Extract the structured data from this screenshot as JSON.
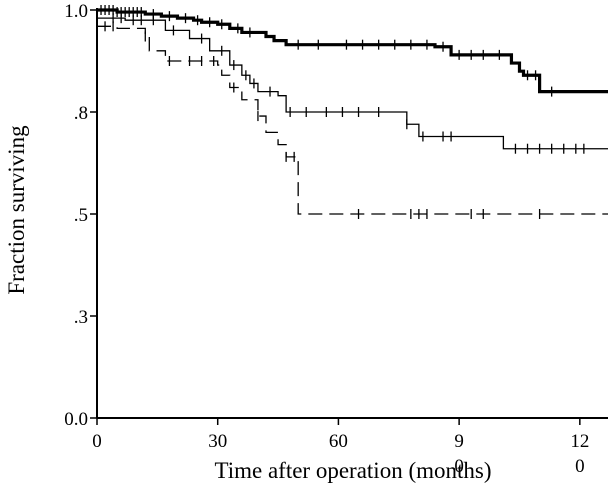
{
  "chart_data": {
    "type": "line",
    "step": true,
    "title": "",
    "xlabel": "Time after operation (months)",
    "ylabel": "Fraction surviving",
    "xlim": [
      0,
      127
    ],
    "ylim": [
      0.0,
      1.0
    ],
    "grid": false,
    "x_ticks": [
      0,
      30,
      60,
      90,
      120
    ],
    "x_tick_labels": [
      "0",
      "30",
      "60",
      "9\n0",
      "12\n0"
    ],
    "y_ticks": [
      0.0,
      0.25,
      0.5,
      0.75,
      1.0
    ],
    "y_tick_labels": [
      "0.0",
      ".3",
      ".5",
      ".8",
      "1.0"
    ],
    "series": [
      {
        "style": "thick-solid",
        "x": [
          0,
          5,
          12,
          16,
          20,
          24,
          26,
          30,
          33,
          36,
          42,
          44,
          47,
          60,
          80,
          84,
          88,
          90,
          103,
          105,
          106,
          110,
          127
        ],
        "y": [
          1.0,
          0.995,
          0.99,
          0.985,
          0.98,
          0.975,
          0.97,
          0.965,
          0.955,
          0.945,
          0.935,
          0.925,
          0.915,
          0.915,
          0.915,
          0.91,
          0.89,
          0.89,
          0.87,
          0.85,
          0.84,
          0.8,
          0.8
        ],
        "censored_x": [
          1,
          2,
          3,
          4,
          5,
          6,
          7,
          8,
          9,
          10,
          11,
          14,
          18,
          22,
          25,
          28,
          31,
          35,
          38,
          50,
          55,
          62,
          66,
          70,
          74,
          78,
          82,
          86,
          90,
          93,
          96,
          100,
          107,
          109,
          113
        ]
      },
      {
        "style": "thin-solid",
        "x": [
          0,
          7,
          17,
          23,
          28,
          33,
          36,
          38,
          40,
          45,
          47,
          60,
          75,
          77,
          80,
          101,
          127
        ],
        "y": [
          0.98,
          0.975,
          0.95,
          0.93,
          0.9,
          0.865,
          0.84,
          0.82,
          0.8,
          0.79,
          0.75,
          0.75,
          0.75,
          0.72,
          0.69,
          0.66,
          0.66
        ],
        "censored_x": [
          4,
          6,
          9,
          11,
          14,
          19,
          26,
          31,
          34,
          37,
          39,
          43,
          48,
          52,
          57,
          61,
          65,
          70,
          77,
          81,
          86,
          88,
          104,
          107,
          110,
          113,
          116,
          119,
          121
        ]
      },
      {
        "style": "dashed",
        "x": [
          0,
          5,
          12,
          13,
          17,
          30,
          31,
          33,
          36,
          40,
          42,
          45,
          47,
          50,
          127
        ],
        "y": [
          0.96,
          0.955,
          0.935,
          0.9,
          0.875,
          0.865,
          0.84,
          0.81,
          0.78,
          0.74,
          0.7,
          0.67,
          0.64,
          0.5,
          0.5
        ],
        "censored_x": [
          2,
          4,
          12,
          18,
          23,
          26,
          29,
          34,
          40,
          47,
          49,
          65,
          78,
          80,
          82,
          93,
          96,
          110
        ]
      }
    ]
  }
}
